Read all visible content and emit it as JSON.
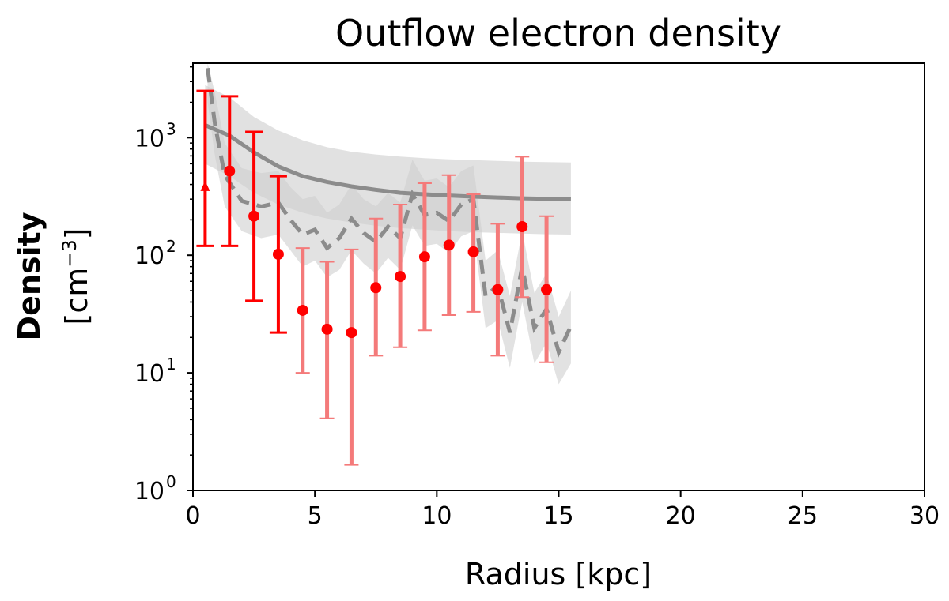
{
  "chart_data": {
    "type": "scatter",
    "title": "Outflow electron density",
    "xlabel": "Radius [kpc]",
    "ylabel": "Density",
    "ylabel_unit": "[cm",
    "ylabel_unit_exp": "−3",
    "ylabel_unit_close": "]",
    "xlim": [
      0,
      30
    ],
    "ylim": [
      1,
      4300
    ],
    "yscale": "log",
    "grid": false,
    "xticks": [
      0,
      5,
      10,
      15,
      20,
      25,
      30
    ],
    "xtick_labels": [
      "0",
      "5",
      "10",
      "15",
      "20",
      "25",
      "30"
    ],
    "yticks": [
      1,
      10,
      100,
      1000
    ],
    "ytick_labels": [
      {
        "base": "10",
        "exp": "0"
      },
      {
        "base": "10",
        "exp": "1"
      },
      {
        "base": "10",
        "exp": "2"
      },
      {
        "base": "10",
        "exp": "3"
      }
    ],
    "colors": {
      "points_primary": "#ff0000",
      "points_secondary": "#f47a7a",
      "model_line": "#8c8c8c",
      "band": "#dcdcdc"
    },
    "series": [
      {
        "style": "red-bold-errorbars",
        "points": [
          {
            "x": 0.5,
            "y": 380,
            "ylow": 120,
            "yhigh": 2500,
            "marker": "triangle-up"
          },
          {
            "x": 1.5,
            "y": 520,
            "ylow": 120,
            "yhigh": 2250
          },
          {
            "x": 2.5,
            "y": 215,
            "ylow": 41,
            "yhigh": 1120
          },
          {
            "x": 3.5,
            "y": 102,
            "ylow": 22,
            "yhigh": 470
          }
        ]
      },
      {
        "style": "light-red-errorbars",
        "points": [
          {
            "x": 4.5,
            "y": 34,
            "ylow": 10,
            "yhigh": 115
          },
          {
            "x": 5.5,
            "y": 23.5,
            "ylow": 4.1,
            "yhigh": 88
          },
          {
            "x": 6.5,
            "y": 22,
            "ylow": 1.65,
            "yhigh": 112
          },
          {
            "x": 7.5,
            "y": 53,
            "ylow": 14,
            "yhigh": 205
          },
          {
            "x": 8.5,
            "y": 66,
            "ylow": 16.5,
            "yhigh": 270
          },
          {
            "x": 9.5,
            "y": 97,
            "ylow": 23,
            "yhigh": 410
          },
          {
            "x": 10.5,
            "y": 122,
            "ylow": 31,
            "yhigh": 480
          },
          {
            "x": 11.5,
            "y": 107,
            "ylow": 33,
            "yhigh": 330
          },
          {
            "x": 12.5,
            "y": 51,
            "ylow": 14,
            "yhigh": 185
          },
          {
            "x": 13.5,
            "y": 175,
            "ylow": 44,
            "yhigh": 690
          },
          {
            "x": 14.5,
            "y": 51,
            "ylow": 12.3,
            "yhigh": 215
          }
        ]
      },
      {
        "style": "solid-model",
        "x": [
          0.5,
          1.5,
          2.5,
          3.5,
          4.5,
          5.5,
          6.5,
          7.5,
          8.5,
          9.5,
          10.5,
          11.5,
          12.5,
          13.5,
          14.5,
          15.5
        ],
        "y": [
          1280,
          1040,
          750,
          570,
          470,
          420,
          385,
          360,
          340,
          330,
          322,
          315,
          310,
          305,
          302,
          300
        ],
        "band_low": [
          600,
          470,
          340,
          270,
          230,
          205,
          190,
          178,
          170,
          165,
          160,
          157,
          155,
          153,
          151,
          150
        ],
        "band_high": [
          2800,
          2200,
          1500,
          1150,
          950,
          830,
          760,
          720,
          690,
          670,
          655,
          645,
          635,
          625,
          620,
          615
        ]
      },
      {
        "style": "dashed-model",
        "x": [
          0.6,
          0.9,
          1.3,
          2.0,
          2.8,
          3.5,
          4.0,
          4.5,
          5.0,
          5.5,
          6.0,
          6.5,
          7.0,
          7.5,
          8.0,
          8.5,
          9.0,
          9.5,
          10.0,
          10.5,
          11.0,
          11.5,
          12.0,
          12.5,
          13.0,
          13.5,
          14.0,
          14.5,
          15.0,
          15.5
        ],
        "y": [
          3900,
          1300,
          480,
          290,
          260,
          280,
          200,
          150,
          165,
          115,
          140,
          205,
          155,
          130,
          175,
          140,
          330,
          220,
          230,
          195,
          270,
          300,
          45,
          55,
          22,
          80,
          24,
          35,
          15,
          25
        ],
        "band_low": [
          2000,
          700,
          260,
          160,
          140,
          150,
          110,
          80,
          90,
          65,
          75,
          110,
          85,
          70,
          95,
          75,
          180,
          120,
          125,
          105,
          145,
          160,
          24,
          28,
          11,
          40,
          12,
          18,
          8,
          12
        ],
        "band_high": [
          4300,
          2400,
          900,
          550,
          500,
          520,
          380,
          300,
          320,
          230,
          270,
          400,
          300,
          260,
          340,
          280,
          650,
          430,
          450,
          380,
          520,
          580,
          90,
          110,
          45,
          160,
          48,
          70,
          30,
          50
        ]
      }
    ]
  }
}
